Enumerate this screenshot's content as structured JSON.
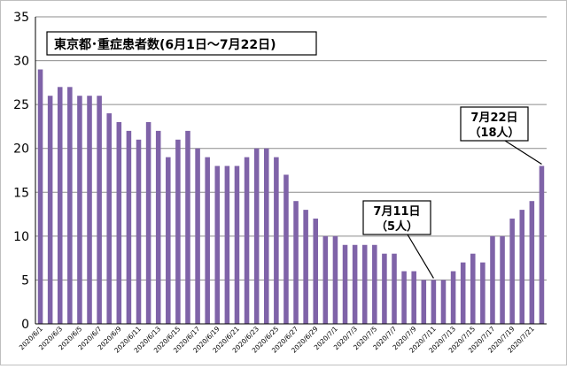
{
  "chart_data": {
    "type": "bar",
    "title": "東京都･重症患者数(6月1日～7月22日)",
    "xlabel": "",
    "ylabel": "",
    "ylim": [
      0,
      35
    ],
    "yticks": [
      0,
      5,
      10,
      15,
      20,
      25,
      30,
      35
    ],
    "grid": true,
    "bar_color": "#7f63a8",
    "categories": [
      "2020/6/1",
      "2020/6/2",
      "2020/6/3",
      "2020/6/4",
      "2020/6/5",
      "2020/6/6",
      "2020/6/7",
      "2020/6/8",
      "2020/6/9",
      "2020/6/10",
      "2020/6/11",
      "2020/6/12",
      "2020/6/13",
      "2020/6/14",
      "2020/6/15",
      "2020/6/16",
      "2020/6/17",
      "2020/6/18",
      "2020/6/19",
      "2020/6/20",
      "2020/6/21",
      "2020/6/22",
      "2020/6/23",
      "2020/6/24",
      "2020/6/25",
      "2020/6/26",
      "2020/6/27",
      "2020/6/28",
      "2020/6/29",
      "2020/6/30",
      "2020/7/1",
      "2020/7/2",
      "2020/7/3",
      "2020/7/4",
      "2020/7/5",
      "2020/7/6",
      "2020/7/7",
      "2020/7/8",
      "2020/7/9",
      "2020/7/10",
      "2020/7/11",
      "2020/7/12",
      "2020/7/13",
      "2020/7/14",
      "2020/7/15",
      "2020/7/16",
      "2020/7/17",
      "2020/7/18",
      "2020/7/19",
      "2020/7/20",
      "2020/7/21",
      "2020/7/22"
    ],
    "tick_labels": [
      "2020/6/1",
      "2020/6/3",
      "2020/6/5",
      "2020/6/7",
      "2020/6/9",
      "2020/6/11",
      "2020/6/13",
      "2020/6/15",
      "2020/6/17",
      "2020/6/19",
      "2020/6/21",
      "2020/6/23",
      "2020/6/25",
      "2020/6/27",
      "2020/6/29",
      "2020/7/1",
      "2020/7/3",
      "2020/7/5",
      "2020/7/7",
      "2020/7/9",
      "2020/7/11",
      "2020/7/13",
      "2020/7/15",
      "2020/7/17",
      "2020/7/19",
      "2020/7/21"
    ],
    "values": [
      29,
      26,
      27,
      27,
      26,
      26,
      26,
      24,
      23,
      22,
      21,
      23,
      22,
      19,
      21,
      22,
      20,
      19,
      18,
      18,
      18,
      19,
      20,
      20,
      19,
      17,
      14,
      13,
      12,
      10,
      10,
      9,
      9,
      9,
      9,
      8,
      8,
      6,
      6,
      5,
      5,
      5,
      6,
      7,
      8,
      7,
      10,
      10,
      12,
      13,
      14,
      18
    ],
    "annotations": [
      {
        "line1": "7月11日",
        "line2": "（5人）",
        "index": 40
      },
      {
        "line1": "7月22日",
        "line2": "（18人）",
        "index": 51
      }
    ]
  }
}
